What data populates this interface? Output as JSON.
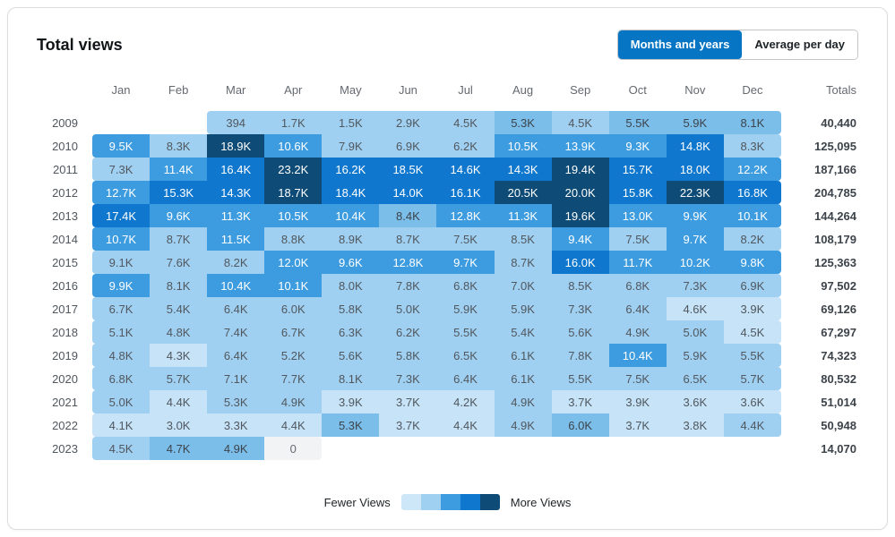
{
  "title": "Total views",
  "toggle": {
    "options": [
      {
        "label": "Months and years",
        "active": true
      },
      {
        "label": "Average per day",
        "active": false
      }
    ],
    "active_color": "#0675c4"
  },
  "legend": {
    "fewer": "Fewer Views",
    "more": "More Views",
    "swatches": [
      "#cde7f9",
      "#a0d0f1",
      "#3d9ce0",
      "#0f77cd",
      "#0e4b76"
    ]
  },
  "colors": {
    "tiers": {
      "0": {
        "bg": "#f2f3f4",
        "fg": "#646970"
      },
      "1": {
        "bg": "#c6e3f8",
        "fg": "#50575e"
      },
      "2": {
        "bg": "#a0d0f1",
        "fg": "#50575e"
      },
      "3": {
        "bg": "#7cbeea",
        "fg": "#3c434a"
      },
      "4": {
        "bg": "#3d9ce0",
        "fg": "#ffffff"
      },
      "5": {
        "bg": "#0f77cd",
        "fg": "#ffffff"
      },
      "6": {
        "bg": "#0e4b76",
        "fg": "#ffffff"
      }
    }
  },
  "chart_data": {
    "type": "heatmap",
    "title": "Total views",
    "columns": [
      "Jan",
      "Feb",
      "Mar",
      "Apr",
      "May",
      "Jun",
      "Jul",
      "Aug",
      "Sep",
      "Oct",
      "Nov",
      "Dec"
    ],
    "totals_label": "Totals",
    "rows": [
      {
        "year": "2009",
        "cells": [
          null,
          null,
          {
            "v": "394",
            "t": 2
          },
          {
            "v": "1.7K",
            "t": 2
          },
          {
            "v": "1.5K",
            "t": 2
          },
          {
            "v": "2.9K",
            "t": 2
          },
          {
            "v": "4.5K",
            "t": 2
          },
          {
            "v": "5.3K",
            "t": 3
          },
          {
            "v": "4.5K",
            "t": 2
          },
          {
            "v": "5.5K",
            "t": 3
          },
          {
            "v": "5.9K",
            "t": 3
          },
          {
            "v": "8.1K",
            "t": 3
          }
        ],
        "total": "40,440"
      },
      {
        "year": "2010",
        "cells": [
          {
            "v": "9.5K",
            "t": 4
          },
          {
            "v": "8.3K",
            "t": 2
          },
          {
            "v": "18.9K",
            "t": 6
          },
          {
            "v": "10.6K",
            "t": 4
          },
          {
            "v": "7.9K",
            "t": 2
          },
          {
            "v": "6.9K",
            "t": 2
          },
          {
            "v": "6.2K",
            "t": 2
          },
          {
            "v": "10.5K",
            "t": 4
          },
          {
            "v": "13.9K",
            "t": 4
          },
          {
            "v": "9.3K",
            "t": 4
          },
          {
            "v": "14.8K",
            "t": 5
          },
          {
            "v": "8.3K",
            "t": 2
          }
        ],
        "total": "125,095"
      },
      {
        "year": "2011",
        "cells": [
          {
            "v": "7.3K",
            "t": 2
          },
          {
            "v": "11.4K",
            "t": 4
          },
          {
            "v": "16.4K",
            "t": 5
          },
          {
            "v": "23.2K",
            "t": 6
          },
          {
            "v": "16.2K",
            "t": 5
          },
          {
            "v": "18.5K",
            "t": 5
          },
          {
            "v": "14.6K",
            "t": 5
          },
          {
            "v": "14.3K",
            "t": 5
          },
          {
            "v": "19.4K",
            "t": 6
          },
          {
            "v": "15.7K",
            "t": 5
          },
          {
            "v": "18.0K",
            "t": 5
          },
          {
            "v": "12.2K",
            "t": 4
          }
        ],
        "total": "187,166"
      },
      {
        "year": "2012",
        "cells": [
          {
            "v": "12.7K",
            "t": 4
          },
          {
            "v": "15.3K",
            "t": 5
          },
          {
            "v": "14.3K",
            "t": 5
          },
          {
            "v": "18.7K",
            "t": 6
          },
          {
            "v": "18.4K",
            "t": 5
          },
          {
            "v": "14.0K",
            "t": 5
          },
          {
            "v": "16.1K",
            "t": 5
          },
          {
            "v": "20.5K",
            "t": 6
          },
          {
            "v": "20.0K",
            "t": 6
          },
          {
            "v": "15.8K",
            "t": 5
          },
          {
            "v": "22.3K",
            "t": 6
          },
          {
            "v": "16.8K",
            "t": 5
          }
        ],
        "total": "204,785"
      },
      {
        "year": "2013",
        "cells": [
          {
            "v": "17.4K",
            "t": 5
          },
          {
            "v": "9.6K",
            "t": 4
          },
          {
            "v": "11.3K",
            "t": 4
          },
          {
            "v": "10.5K",
            "t": 4
          },
          {
            "v": "10.4K",
            "t": 4
          },
          {
            "v": "8.4K",
            "t": 3
          },
          {
            "v": "12.8K",
            "t": 4
          },
          {
            "v": "11.3K",
            "t": 4
          },
          {
            "v": "19.6K",
            "t": 6
          },
          {
            "v": "13.0K",
            "t": 4
          },
          {
            "v": "9.9K",
            "t": 4
          },
          {
            "v": "10.1K",
            "t": 4
          }
        ],
        "total": "144,264"
      },
      {
        "year": "2014",
        "cells": [
          {
            "v": "10.7K",
            "t": 4
          },
          {
            "v": "8.7K",
            "t": 2
          },
          {
            "v": "11.5K",
            "t": 4
          },
          {
            "v": "8.8K",
            "t": 2
          },
          {
            "v": "8.9K",
            "t": 2
          },
          {
            "v": "8.7K",
            "t": 2
          },
          {
            "v": "7.5K",
            "t": 2
          },
          {
            "v": "8.5K",
            "t": 2
          },
          {
            "v": "9.4K",
            "t": 4
          },
          {
            "v": "7.5K",
            "t": 2
          },
          {
            "v": "9.7K",
            "t": 4
          },
          {
            "v": "8.2K",
            "t": 2
          }
        ],
        "total": "108,179"
      },
      {
        "year": "2015",
        "cells": [
          {
            "v": "9.1K",
            "t": 2
          },
          {
            "v": "7.6K",
            "t": 2
          },
          {
            "v": "8.2K",
            "t": 2
          },
          {
            "v": "12.0K",
            "t": 4
          },
          {
            "v": "9.6K",
            "t": 4
          },
          {
            "v": "12.8K",
            "t": 4
          },
          {
            "v": "9.7K",
            "t": 4
          },
          {
            "v": "8.7K",
            "t": 2
          },
          {
            "v": "16.0K",
            "t": 5
          },
          {
            "v": "11.7K",
            "t": 4
          },
          {
            "v": "10.2K",
            "t": 4
          },
          {
            "v": "9.8K",
            "t": 4
          }
        ],
        "total": "125,363"
      },
      {
        "year": "2016",
        "cells": [
          {
            "v": "9.9K",
            "t": 4
          },
          {
            "v": "8.1K",
            "t": 2
          },
          {
            "v": "10.4K",
            "t": 4
          },
          {
            "v": "10.1K",
            "t": 4
          },
          {
            "v": "8.0K",
            "t": 2
          },
          {
            "v": "7.8K",
            "t": 2
          },
          {
            "v": "6.8K",
            "t": 2
          },
          {
            "v": "7.0K",
            "t": 2
          },
          {
            "v": "8.5K",
            "t": 2
          },
          {
            "v": "6.8K",
            "t": 2
          },
          {
            "v": "7.3K",
            "t": 2
          },
          {
            "v": "6.9K",
            "t": 2
          }
        ],
        "total": "97,502"
      },
      {
        "year": "2017",
        "cells": [
          {
            "v": "6.7K",
            "t": 2
          },
          {
            "v": "5.4K",
            "t": 2
          },
          {
            "v": "6.4K",
            "t": 2
          },
          {
            "v": "6.0K",
            "t": 2
          },
          {
            "v": "5.8K",
            "t": 2
          },
          {
            "v": "5.0K",
            "t": 2
          },
          {
            "v": "5.9K",
            "t": 2
          },
          {
            "v": "5.9K",
            "t": 2
          },
          {
            "v": "7.3K",
            "t": 2
          },
          {
            "v": "6.4K",
            "t": 2
          },
          {
            "v": "4.6K",
            "t": 1
          },
          {
            "v": "3.9K",
            "t": 1
          }
        ],
        "total": "69,126"
      },
      {
        "year": "2018",
        "cells": [
          {
            "v": "5.1K",
            "t": 2
          },
          {
            "v": "4.8K",
            "t": 2
          },
          {
            "v": "7.4K",
            "t": 2
          },
          {
            "v": "6.7K",
            "t": 2
          },
          {
            "v": "6.3K",
            "t": 2
          },
          {
            "v": "6.2K",
            "t": 2
          },
          {
            "v": "5.5K",
            "t": 2
          },
          {
            "v": "5.4K",
            "t": 2
          },
          {
            "v": "5.6K",
            "t": 2
          },
          {
            "v": "4.9K",
            "t": 2
          },
          {
            "v": "5.0K",
            "t": 2
          },
          {
            "v": "4.5K",
            "t": 1
          }
        ],
        "total": "67,297"
      },
      {
        "year": "2019",
        "cells": [
          {
            "v": "4.8K",
            "t": 2
          },
          {
            "v": "4.3K",
            "t": 1
          },
          {
            "v": "6.4K",
            "t": 2
          },
          {
            "v": "5.2K",
            "t": 2
          },
          {
            "v": "5.6K",
            "t": 2
          },
          {
            "v": "5.8K",
            "t": 2
          },
          {
            "v": "6.5K",
            "t": 2
          },
          {
            "v": "6.1K",
            "t": 2
          },
          {
            "v": "7.8K",
            "t": 2
          },
          {
            "v": "10.4K",
            "t": 4
          },
          {
            "v": "5.9K",
            "t": 2
          },
          {
            "v": "5.5K",
            "t": 2
          }
        ],
        "total": "74,323"
      },
      {
        "year": "2020",
        "cells": [
          {
            "v": "6.8K",
            "t": 2
          },
          {
            "v": "5.7K",
            "t": 2
          },
          {
            "v": "7.1K",
            "t": 2
          },
          {
            "v": "7.7K",
            "t": 2
          },
          {
            "v": "8.1K",
            "t": 2
          },
          {
            "v": "7.3K",
            "t": 2
          },
          {
            "v": "6.4K",
            "t": 2
          },
          {
            "v": "6.1K",
            "t": 2
          },
          {
            "v": "5.5K",
            "t": 2
          },
          {
            "v": "7.5K",
            "t": 2
          },
          {
            "v": "6.5K",
            "t": 2
          },
          {
            "v": "5.7K",
            "t": 2
          }
        ],
        "total": "80,532"
      },
      {
        "year": "2021",
        "cells": [
          {
            "v": "5.0K",
            "t": 2
          },
          {
            "v": "4.4K",
            "t": 1
          },
          {
            "v": "5.3K",
            "t": 2
          },
          {
            "v": "4.9K",
            "t": 2
          },
          {
            "v": "3.9K",
            "t": 1
          },
          {
            "v": "3.7K",
            "t": 1
          },
          {
            "v": "4.2K",
            "t": 1
          },
          {
            "v": "4.9K",
            "t": 2
          },
          {
            "v": "3.7K",
            "t": 1
          },
          {
            "v": "3.9K",
            "t": 1
          },
          {
            "v": "3.6K",
            "t": 1
          },
          {
            "v": "3.6K",
            "t": 1
          }
        ],
        "total": "51,014"
      },
      {
        "year": "2022",
        "cells": [
          {
            "v": "4.1K",
            "t": 1
          },
          {
            "v": "3.0K",
            "t": 1
          },
          {
            "v": "3.3K",
            "t": 1
          },
          {
            "v": "4.4K",
            "t": 1
          },
          {
            "v": "5.3K",
            "t": 3
          },
          {
            "v": "3.7K",
            "t": 1
          },
          {
            "v": "4.4K",
            "t": 1
          },
          {
            "v": "4.9K",
            "t": 2
          },
          {
            "v": "6.0K",
            "t": 3
          },
          {
            "v": "3.7K",
            "t": 1
          },
          {
            "v": "3.8K",
            "t": 1
          },
          {
            "v": "4.4K",
            "t": 2
          }
        ],
        "total": "50,948"
      },
      {
        "year": "2023",
        "cells": [
          {
            "v": "4.5K",
            "t": 2
          },
          {
            "v": "4.7K",
            "t": 3
          },
          {
            "v": "4.9K",
            "t": 3
          },
          {
            "v": "0",
            "t": 0
          },
          null,
          null,
          null,
          null,
          null,
          null,
          null,
          null
        ],
        "total": "14,070"
      }
    ]
  }
}
